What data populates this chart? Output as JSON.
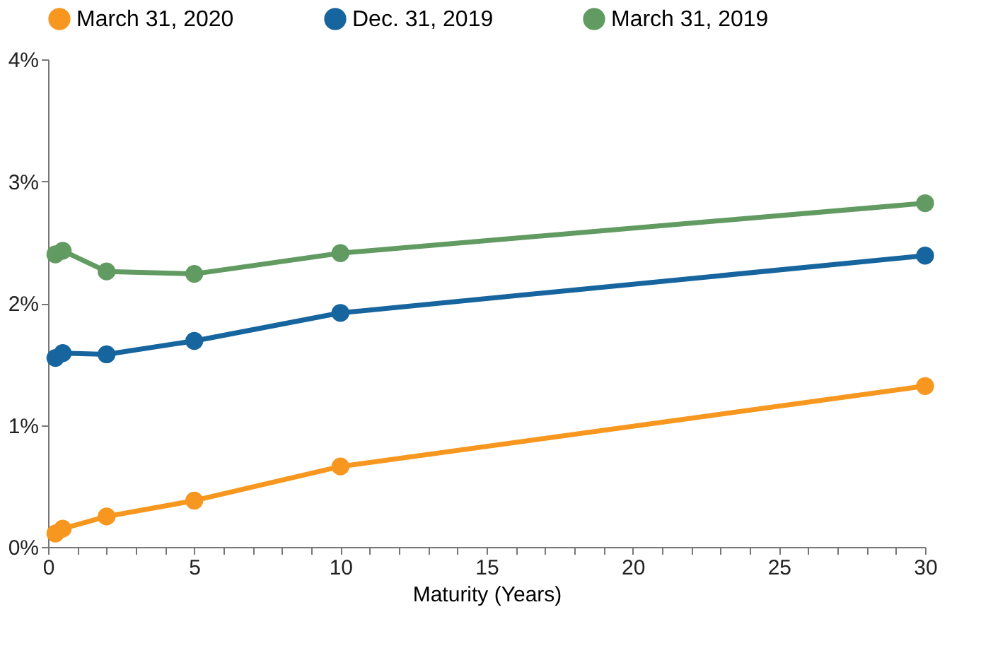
{
  "chart_data": {
    "type": "line",
    "xlabel": "Maturity (Years)",
    "x": [
      0.25,
      0.5,
      2,
      5,
      10,
      30
    ],
    "series": [
      {
        "name": "March 31, 2020",
        "color": "#f7971f",
        "values": [
          0.11,
          0.15,
          0.25,
          0.38,
          0.66,
          1.32
        ]
      },
      {
        "name": "Dec. 31, 2019",
        "color": "#17659e",
        "values": [
          1.55,
          1.59,
          1.58,
          1.69,
          1.92,
          2.39
        ]
      },
      {
        "name": "March 31, 2019",
        "color": "#629b62",
        "values": [
          2.4,
          2.43,
          2.26,
          2.24,
          2.41,
          2.82
        ]
      }
    ],
    "xlim": [
      0,
      30
    ],
    "xticks": [
      0,
      {
        "value": 1,
        "label": null
      },
      {
        "value": 2,
        "label": null
      },
      {
        "value": 3,
        "label": null
      },
      {
        "value": 4,
        "label": null
      },
      5,
      {
        "value": 6,
        "label": null
      },
      {
        "value": 7,
        "label": null
      },
      {
        "value": 8,
        "label": null
      },
      {
        "value": 9,
        "label": null
      },
      10,
      {
        "value": 11,
        "label": null
      },
      {
        "value": 12,
        "label": null
      },
      {
        "value": 13,
        "label": null
      },
      {
        "value": 14,
        "label": null
      },
      15,
      {
        "value": 16,
        "label": null
      },
      {
        "value": 17,
        "label": null
      },
      {
        "value": 18,
        "label": null
      },
      {
        "value": 19,
        "label": null
      },
      20,
      {
        "value": 21,
        "label": null
      },
      {
        "value": 22,
        "label": null
      },
      {
        "value": 23,
        "label": null
      },
      {
        "value": 24,
        "label": null
      },
      25,
      {
        "value": 26,
        "label": null
      },
      {
        "value": 27,
        "label": null
      },
      {
        "value": 28,
        "label": null
      },
      {
        "value": 29,
        "label": null
      },
      30
    ],
    "ylim": [
      0,
      4
    ],
    "yticks": [
      {
        "value": 0,
        "label": "0%"
      },
      {
        "value": 1,
        "label": "1%"
      },
      {
        "value": 2,
        "label": "2%"
      },
      {
        "value": 3,
        "label": "3%"
      },
      {
        "value": 4,
        "label": "4%"
      }
    ],
    "grid": false,
    "legend": "top",
    "marker": "circle",
    "line_style": "solid"
  }
}
